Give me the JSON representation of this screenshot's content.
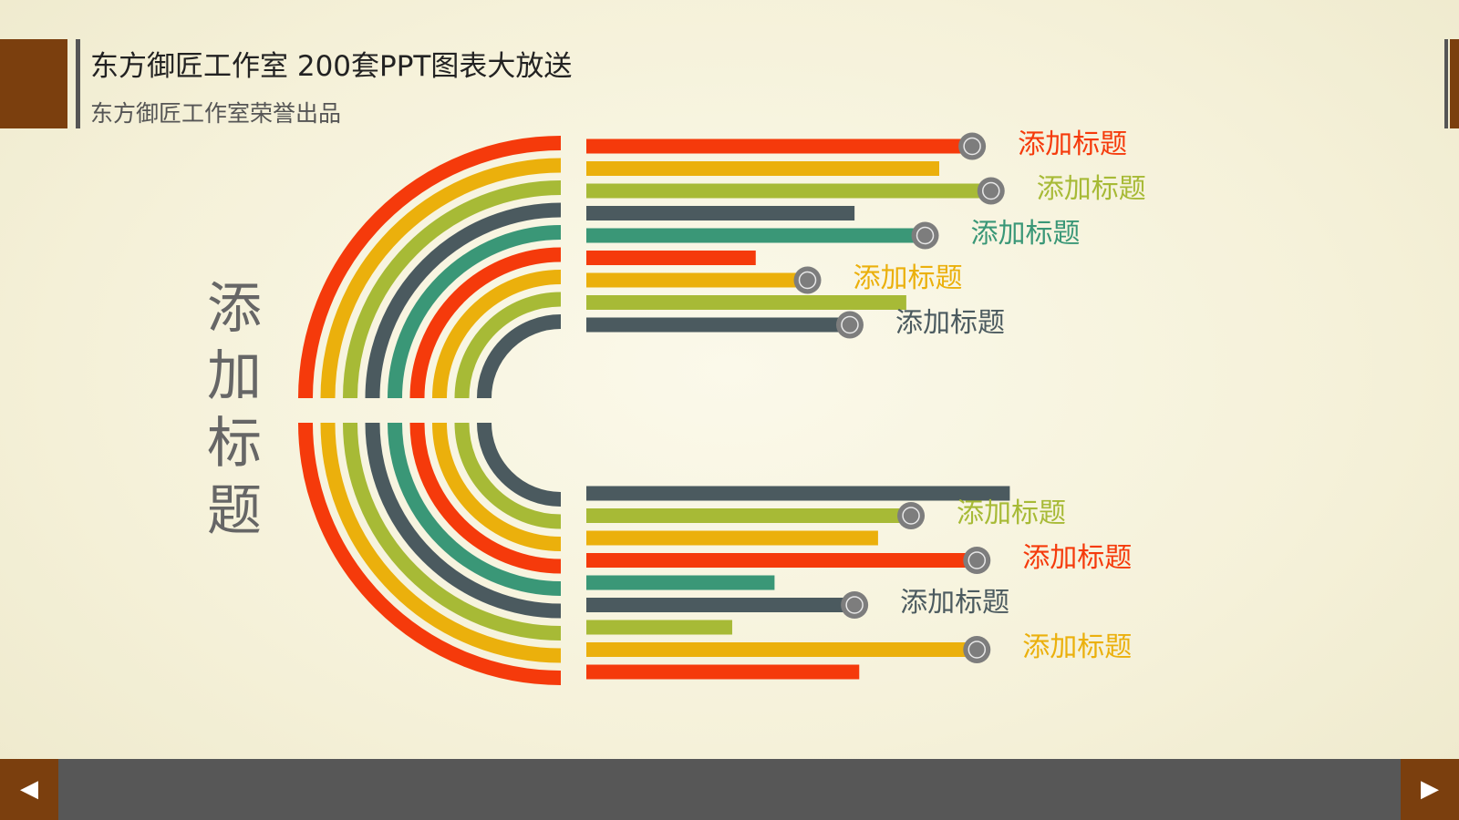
{
  "header": {
    "title": "东方御匠工作室 200套PPT图表大放送",
    "subtitle": "东方御匠工作室荣誉出品"
  },
  "main_title": [
    "添",
    "加",
    "标",
    "题"
  ],
  "colors": {
    "red": "#f53a0b",
    "orange": "#ebb00c",
    "green": "#a7ba36",
    "slate": "#4b5a5f",
    "teal": "#3a9777",
    "brand_brown": "#7b3f0e",
    "footer_gray": "#575757",
    "marker_gray": "#7d7d7d"
  },
  "diagram": {
    "arc_colors": [
      "red",
      "orange",
      "green",
      "slate",
      "teal",
      "red",
      "orange",
      "green",
      "slate"
    ],
    "upper_group": [
      {
        "color": "red",
        "value": 0.82,
        "label": "添加标题"
      },
      {
        "color": "orange",
        "value": 0.75
      },
      {
        "color": "green",
        "value": 0.86,
        "label": "添加标题"
      },
      {
        "color": "slate",
        "value": 0.57
      },
      {
        "color": "teal",
        "value": 0.72,
        "label": "添加标题"
      },
      {
        "color": "red",
        "value": 0.36
      },
      {
        "color": "orange",
        "value": 0.47,
        "label": "添加标题"
      },
      {
        "color": "green",
        "value": 0.68
      },
      {
        "color": "slate",
        "value": 0.56,
        "label": "添加标题"
      }
    ],
    "lower_group": [
      {
        "color": "slate",
        "value": 0.9
      },
      {
        "color": "green",
        "value": 0.69,
        "label": "添加标题"
      },
      {
        "color": "orange",
        "value": 0.62
      },
      {
        "color": "red",
        "value": 0.83,
        "label": "添加标题"
      },
      {
        "color": "teal",
        "value": 0.4
      },
      {
        "color": "slate",
        "value": 0.57,
        "label": "添加标题"
      },
      {
        "color": "green",
        "value": 0.31
      },
      {
        "color": "orange",
        "value": 0.83,
        "label": "添加标题"
      },
      {
        "color": "red",
        "value": 0.58
      }
    ]
  },
  "nav": {
    "prev_icon": "◀",
    "next_icon": "▶"
  }
}
